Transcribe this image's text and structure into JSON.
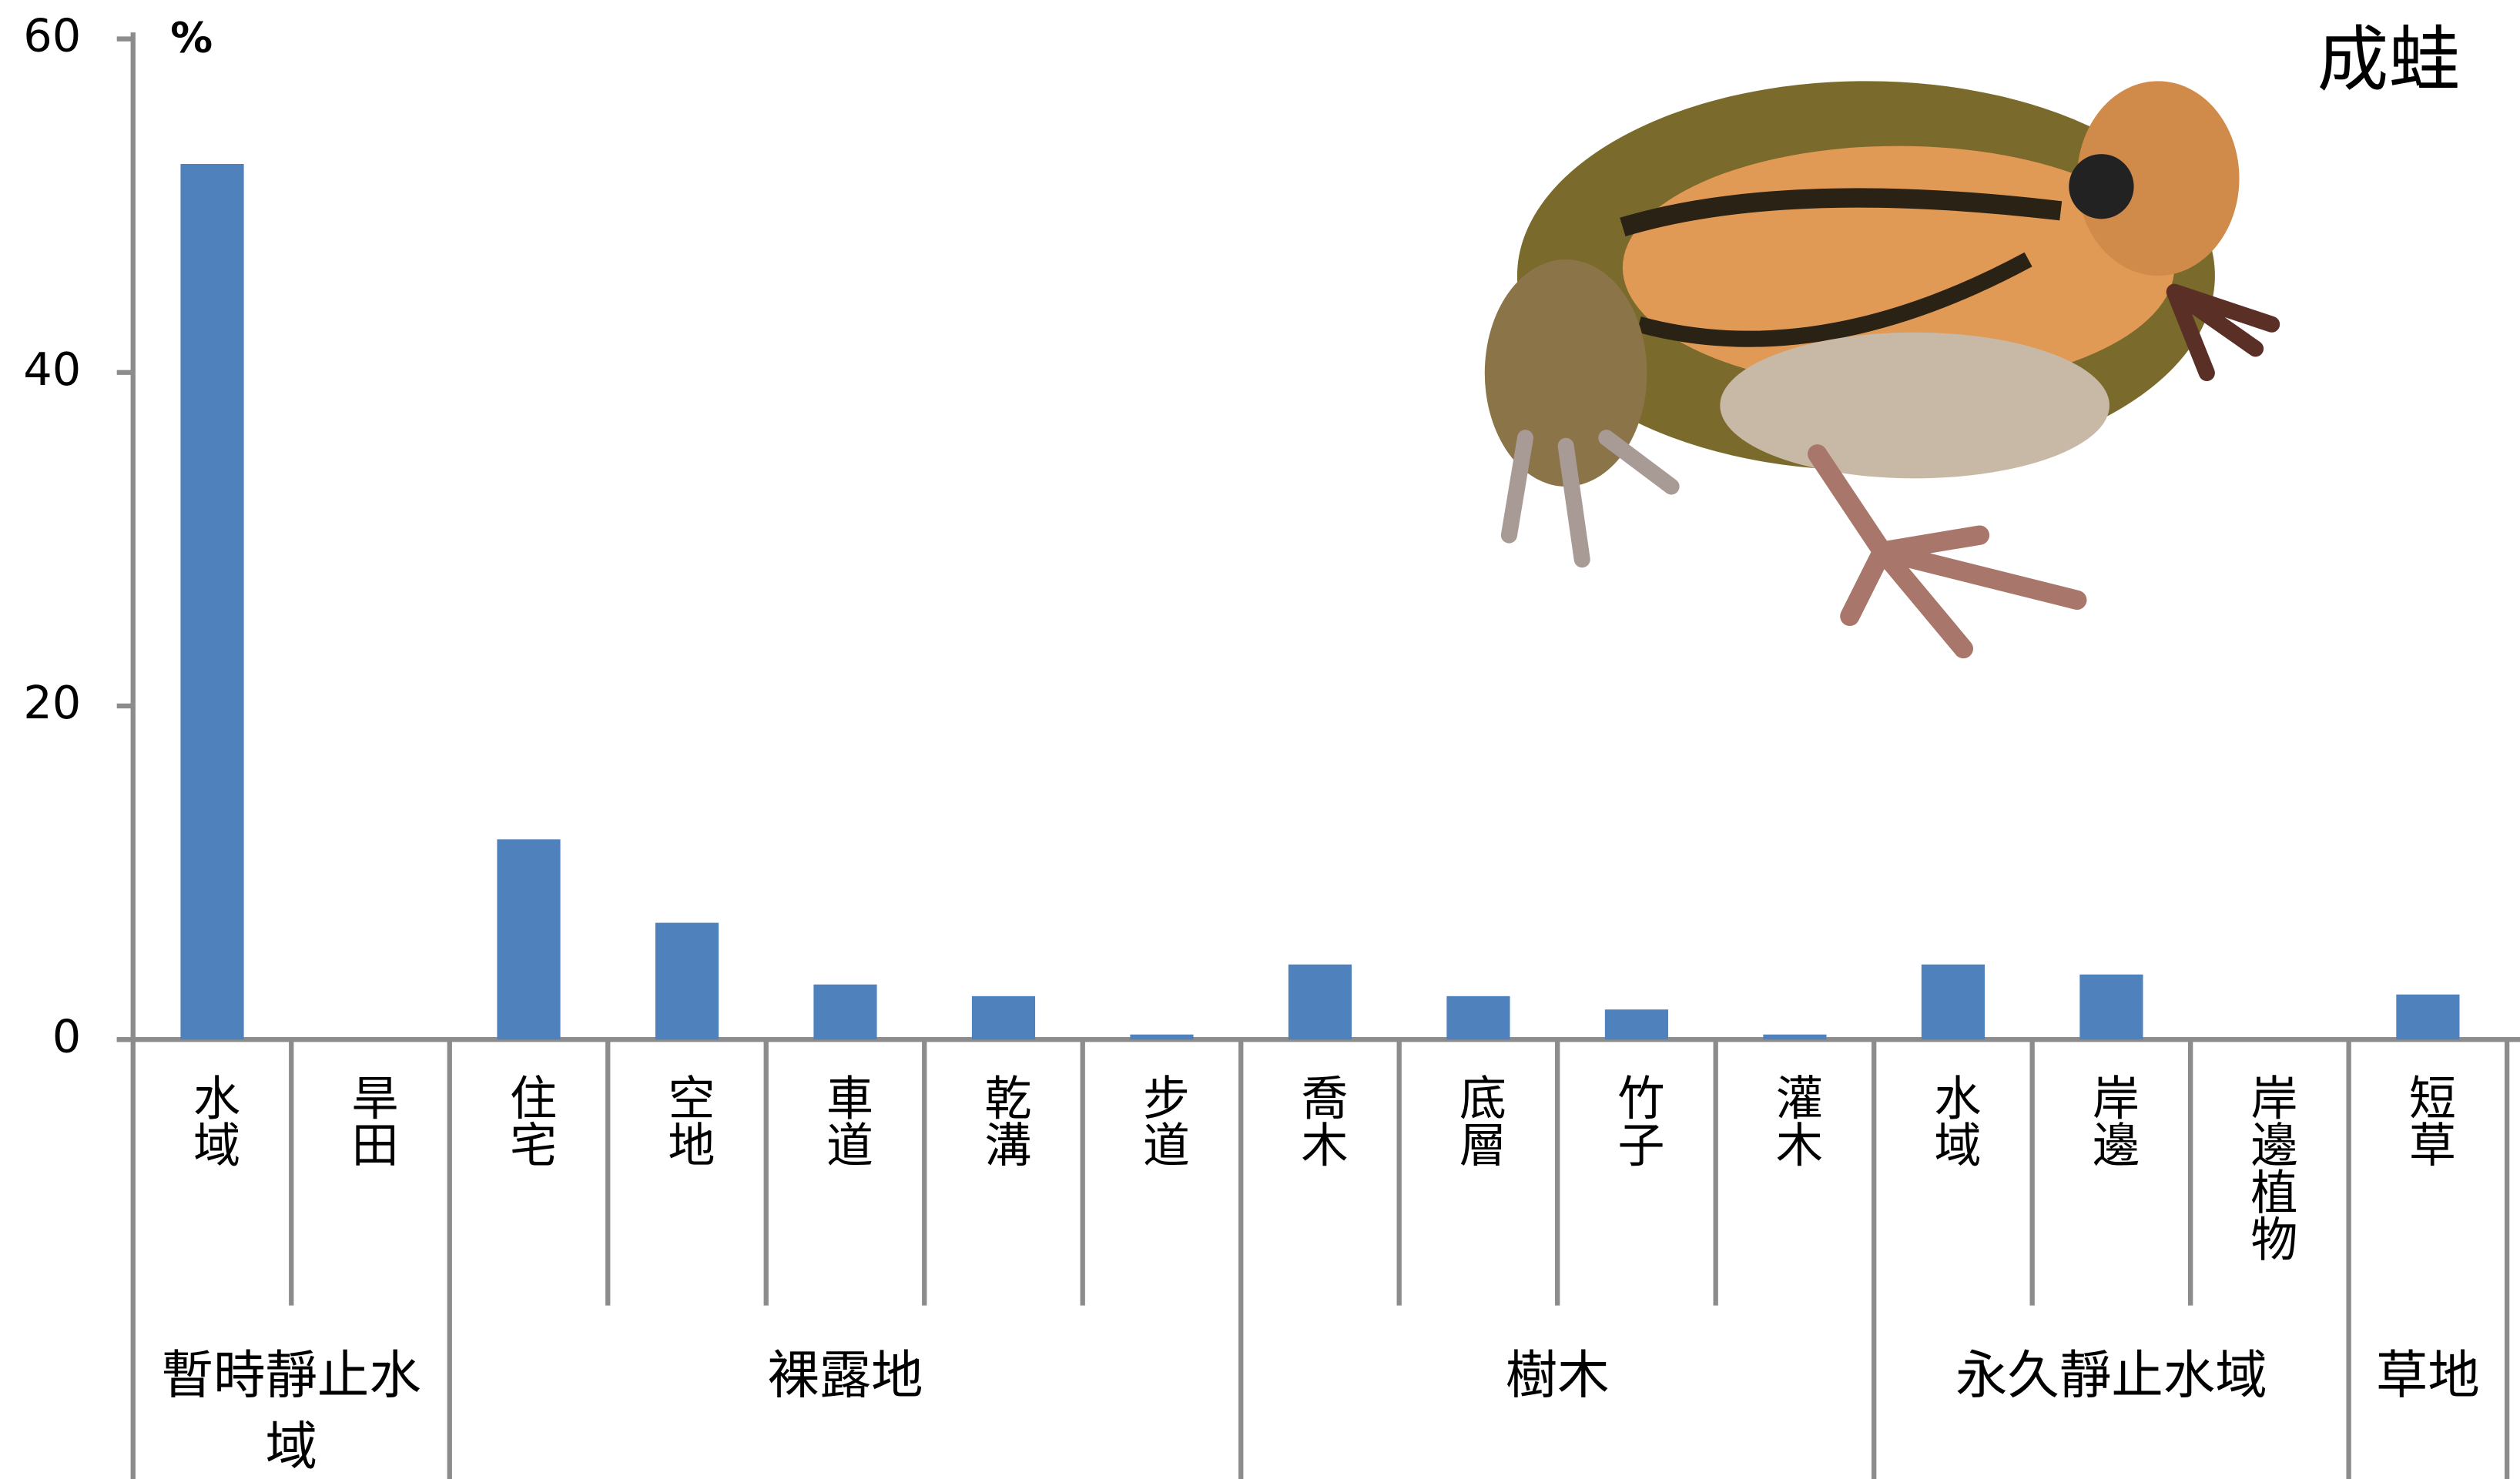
{
  "chart_data": {
    "type": "bar",
    "title": "成蛙",
    "y_label": "%",
    "categories": [
      "水域",
      "旱田",
      "住宅",
      "空地",
      "車道",
      "乾溝",
      "步道",
      "喬木",
      "底層",
      "竹子",
      "灌木",
      "水域",
      "岸邊",
      "岸邊植物",
      "短草"
    ],
    "values": [
      52.5,
      0,
      12,
      7,
      3.3,
      2.6,
      0.3,
      4.5,
      2.6,
      1.8,
      0.3,
      4.5,
      3.9,
      0,
      2.7
    ],
    "groups": [
      {
        "name": "暫時靜止水域",
        "size": 2
      },
      {
        "name": "裸露地",
        "size": 5
      },
      {
        "name": "樹木",
        "size": 4
      },
      {
        "name": "永久靜止水域",
        "size": 3
      },
      {
        "name": "草地",
        "size": 1
      }
    ],
    "color": "#4f81bd",
    "ylim": [
      0,
      60
    ],
    "yticks": [
      0,
      20,
      40,
      60
    ],
    "grid": false
  }
}
